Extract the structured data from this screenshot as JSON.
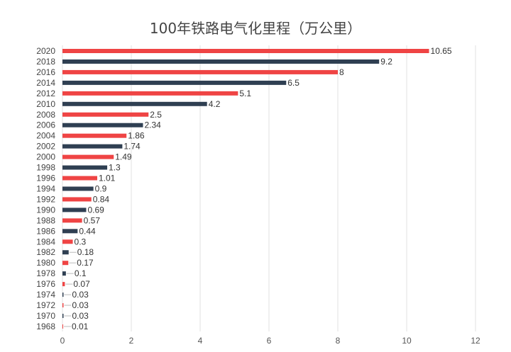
{
  "chart_data": {
    "type": "bar",
    "orientation": "horizontal",
    "title": "100年铁路电气化里程（万公里）",
    "categories": [
      "2020",
      "2018",
      "2016",
      "2014",
      "2012",
      "2010",
      "2008",
      "2006",
      "2004",
      "2002",
      "2000",
      "1998",
      "1996",
      "1994",
      "1992",
      "1990",
      "1988",
      "1986",
      "1984",
      "1982",
      "1980",
      "1978",
      "1976",
      "1974",
      "1972",
      "1970",
      "1968"
    ],
    "values": [
      10.65,
      9.2,
      8,
      6.5,
      5.1,
      4.2,
      2.5,
      2.34,
      1.86,
      1.74,
      1.49,
      1.3,
      1.01,
      0.9,
      0.84,
      0.69,
      0.57,
      0.44,
      0.3,
      0.18,
      0.17,
      0.1,
      0.07,
      0.03,
      0.03,
      0.03,
      0.01
    ],
    "labels": [
      "10.65",
      "9.2",
      "8",
      "6.5",
      "5.1",
      "4.2",
      "2.5",
      "2.34",
      "1.86",
      "1.74",
      "1.49",
      "1.3",
      "1.01",
      "0.9",
      "0.84",
      "0.69",
      "0.57",
      "0.44",
      "0.3",
      "0.18",
      "0.17",
      "0.1",
      "0.07",
      "0.03",
      "0.03",
      "0.03",
      "0.01"
    ],
    "xlim": [
      0,
      12
    ],
    "xticks": [
      "0",
      "2",
      "4",
      "6",
      "8",
      "10",
      "12"
    ],
    "grid": true,
    "colors": [
      "#ef4444",
      "#2f3f52"
    ]
  }
}
